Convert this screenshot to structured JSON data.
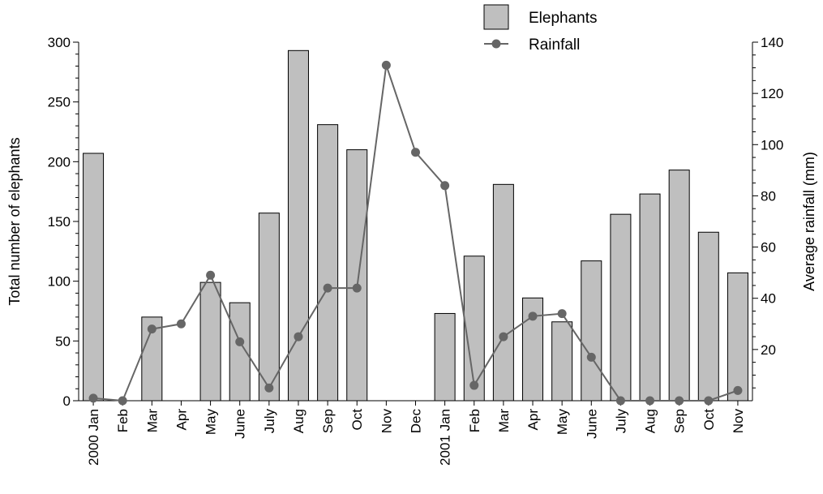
{
  "chart_data": {
    "type": "bar+line",
    "categories": [
      "2000 Jan",
      "Feb",
      "Mar",
      "Apr",
      "May",
      "June",
      "July",
      "Aug",
      "Sep",
      "Oct",
      "Nov",
      "Dec",
      "2001 Jan",
      "Feb",
      "Mar",
      "Apr",
      "May",
      "June",
      "July",
      "Aug",
      "Sep",
      "Oct",
      "Nov"
    ],
    "series": [
      {
        "name": "Elephants",
        "kind": "bar",
        "axis": "left",
        "color": "#bfbfbf",
        "values": [
          207,
          null,
          70,
          null,
          99,
          82,
          157,
          293,
          231,
          210,
          null,
          null,
          73,
          121,
          181,
          86,
          66,
          117,
          156,
          173,
          193,
          141,
          107
        ]
      },
      {
        "name": "Rainfall",
        "kind": "line",
        "axis": "right",
        "color": "#666666",
        "values": [
          1,
          0,
          28,
          30,
          49,
          23,
          5,
          25,
          44,
          44,
          131,
          97,
          84,
          6,
          25,
          33,
          34,
          17,
          0,
          0,
          0,
          0,
          4
        ]
      }
    ],
    "ylabel_left": "Total number of elephants",
    "ylabel_right": "Average rainfall (mm)",
    "ylim_left": [
      0,
      300
    ],
    "yticks_left": [
      0,
      50,
      100,
      150,
      200,
      250,
      300
    ],
    "ylim_right": [
      0,
      140
    ],
    "yticks_right": [
      20,
      40,
      60,
      80,
      100,
      120,
      140
    ],
    "grid": false,
    "legend_position": "top-right"
  }
}
